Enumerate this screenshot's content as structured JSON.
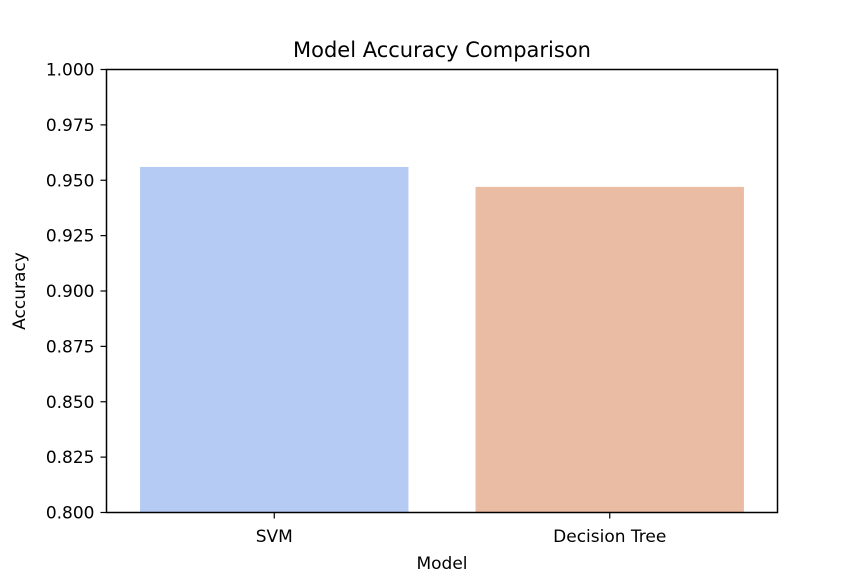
{
  "chart_data": {
    "type": "bar",
    "title": "Model Accuracy Comparison",
    "xlabel": "Model",
    "ylabel": "Accuracy",
    "categories": [
      "SVM",
      "Decision Tree"
    ],
    "values": [
      0.956,
      0.947
    ],
    "colors": [
      "#b5cbf3",
      "#eabca4"
    ],
    "ylim": [
      0.8,
      1.0
    ],
    "yticks": [
      "0.800",
      "0.825",
      "0.850",
      "0.875",
      "0.900",
      "0.925",
      "0.950",
      "0.975",
      "1.000"
    ],
    "grid": false,
    "legend": "none"
  }
}
